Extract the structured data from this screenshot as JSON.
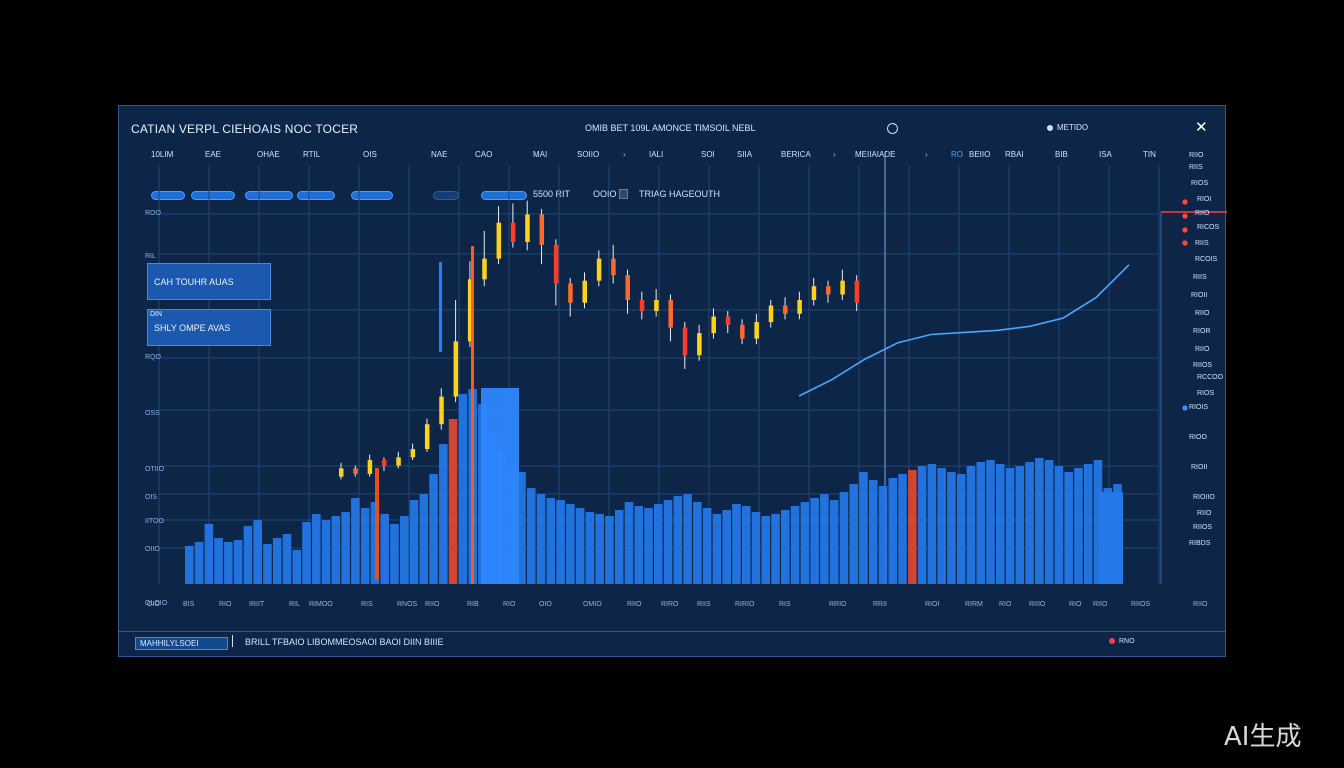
{
  "window": {
    "app_title": "CATIAN VERPL CIEHOAIS NOC TOCER",
    "center_title": "OMIB BET 109L AMONCE TIMSOIL NEBL",
    "metric_label": "METIDO"
  },
  "menu": {
    "items": [
      "10LIM",
      "EAE",
      "OHAE",
      "RTIL",
      "OIS",
      "NAE",
      "CAO",
      "MAI",
      "SOIIO",
      "IALI",
      "SOI",
      "SIIA",
      "BERICA",
      "MEIIAIADE",
      "RO",
      "BEIIO",
      "RBAI",
      "BIB",
      "ISA",
      "TIN"
    ]
  },
  "toolbar": {
    "range_text": "5500 RIT",
    "field_text": "OOIO",
    "info_text": "TRIAG HAGEOUTH"
  },
  "info_boxes": [
    {
      "small": "",
      "text": "CAH TOUHR AUAS"
    },
    {
      "small": "DIN",
      "text": "SHLY OMPE AVAS"
    }
  ],
  "axis": {
    "y_left": [
      "ROO",
      "RIL",
      "RQO",
      "OSS",
      "OTIIO",
      "OIS",
      "IITOO",
      "OIIO",
      "OLOIO"
    ],
    "y_right": [
      "RIIO",
      "RIIS",
      "RIOS",
      "RIOI",
      "RIIO",
      "RICOS",
      "RIIS",
      "RCOIS",
      "RIIS",
      "RIOII",
      "RIIO",
      "RIOR",
      "RIIO",
      "RIIOS",
      "RCCOO",
      "RIOS",
      "RIOIS",
      "RIOO",
      "RIOII",
      "RIOIIO",
      "RIIO",
      "RIIOS",
      "RIBDS"
    ],
    "x_ticks": [
      "OIO",
      "BIS",
      "RIO",
      "IRIIT",
      "RIL",
      "RIMOO",
      "RIS",
      "RNOS",
      "RIIO",
      "RIB",
      "RIO",
      "OIO",
      "OMIO",
      "RIIO",
      "RIRO",
      "RIIS",
      "RIRIO",
      "RIS",
      "RRIO",
      "RRII",
      "RIOI",
      "RIRM",
      "RIO",
      "RIIIO",
      "RIO",
      "RIIO",
      "RIIOS",
      "RIIO"
    ]
  },
  "status": {
    "badge": "MAHHILYLSOEI",
    "text": "BRILL TFBAIO LIBOMMEOSAOI BAOI DIIN BIIIE",
    "right": "RNO"
  },
  "colors": {
    "panel_bg": "#0d2547",
    "volume_bar": "#2478ea",
    "candle_up": "#ffd21a",
    "candle_down": "#ff6a2a",
    "candle_red": "#ff3b2a",
    "trend_line": "#4aa6ff"
  },
  "chart_data": {
    "type": "candlestick_volume",
    "volume": [
      38,
      42,
      60,
      46,
      42,
      44,
      58,
      64,
      40,
      46,
      50,
      34,
      62,
      70,
      64,
      68,
      72,
      86,
      76,
      82,
      70,
      60,
      68,
      84,
      90,
      110,
      140,
      165,
      190,
      195,
      180,
      150,
      135,
      120,
      112,
      96,
      90,
      86,
      84,
      80,
      76,
      72,
      70,
      68,
      74,
      82,
      78,
      76,
      80,
      84,
      88,
      90,
      82,
      76,
      70,
      74,
      80,
      78,
      72,
      68,
      70,
      74,
      78,
      82,
      86,
      90,
      84,
      92,
      100,
      112,
      104,
      98,
      106,
      110,
      114,
      118,
      120,
      116,
      112,
      110,
      118,
      122,
      124,
      120,
      116,
      118,
      122,
      126,
      124,
      118,
      112,
      116,
      120,
      124,
      96,
      100
    ],
    "candles": [
      {
        "o": 72,
        "c": 78,
        "h": 82,
        "l": 70
      },
      {
        "o": 78,
        "c": 74,
        "h": 80,
        "l": 72
      },
      {
        "o": 74,
        "c": 84,
        "h": 88,
        "l": 72
      },
      {
        "o": 84,
        "c": 80,
        "h": 86,
        "l": 76
      },
      {
        "o": 80,
        "c": 86,
        "h": 90,
        "l": 78
      },
      {
        "o": 86,
        "c": 92,
        "h": 96,
        "l": 84
      },
      {
        "o": 92,
        "c": 110,
        "h": 114,
        "l": 90
      },
      {
        "o": 110,
        "c": 130,
        "h": 136,
        "l": 106
      },
      {
        "o": 130,
        "c": 170,
        "h": 200,
        "l": 126
      },
      {
        "o": 170,
        "c": 215,
        "h": 228,
        "l": 166
      },
      {
        "o": 215,
        "c": 230,
        "h": 250,
        "l": 210
      },
      {
        "o": 230,
        "c": 256,
        "h": 268,
        "l": 226
      },
      {
        "o": 256,
        "c": 242,
        "h": 270,
        "l": 238
      },
      {
        "o": 242,
        "c": 262,
        "h": 272,
        "l": 236
      },
      {
        "o": 262,
        "c": 240,
        "h": 266,
        "l": 226
      },
      {
        "o": 240,
        "c": 212,
        "h": 244,
        "l": 196
      },
      {
        "o": 212,
        "c": 198,
        "h": 216,
        "l": 188
      },
      {
        "o": 198,
        "c": 214,
        "h": 220,
        "l": 194
      },
      {
        "o": 214,
        "c": 230,
        "h": 236,
        "l": 210
      },
      {
        "o": 230,
        "c": 218,
        "h": 240,
        "l": 212
      },
      {
        "o": 218,
        "c": 200,
        "h": 222,
        "l": 190
      },
      {
        "o": 200,
        "c": 192,
        "h": 206,
        "l": 186
      },
      {
        "o": 192,
        "c": 200,
        "h": 208,
        "l": 188
      },
      {
        "o": 200,
        "c": 180,
        "h": 204,
        "l": 170
      },
      {
        "o": 180,
        "c": 160,
        "h": 184,
        "l": 150
      },
      {
        "o": 160,
        "c": 176,
        "h": 182,
        "l": 156
      },
      {
        "o": 176,
        "c": 188,
        "h": 194,
        "l": 172
      },
      {
        "o": 188,
        "c": 182,
        "h": 192,
        "l": 176
      },
      {
        "o": 182,
        "c": 172,
        "h": 186,
        "l": 168
      },
      {
        "o": 172,
        "c": 184,
        "h": 190,
        "l": 168
      },
      {
        "o": 184,
        "c": 196,
        "h": 200,
        "l": 180
      },
      {
        "o": 196,
        "c": 190,
        "h": 202,
        "l": 186
      },
      {
        "o": 190,
        "c": 200,
        "h": 206,
        "l": 186
      },
      {
        "o": 200,
        "c": 210,
        "h": 216,
        "l": 196
      },
      {
        "o": 210,
        "c": 204,
        "h": 214,
        "l": 198
      },
      {
        "o": 204,
        "c": 214,
        "h": 222,
        "l": 200
      },
      {
        "o": 214,
        "c": 198,
        "h": 218,
        "l": 192
      }
    ],
    "trend_line": [
      [
        0,
        0
      ],
      [
        10,
        8
      ],
      [
        20,
        18
      ],
      [
        30,
        26
      ],
      [
        40,
        30
      ],
      [
        50,
        31
      ],
      [
        60,
        32
      ],
      [
        70,
        34
      ],
      [
        80,
        38
      ],
      [
        90,
        48
      ],
      [
        100,
        64
      ]
    ]
  }
}
